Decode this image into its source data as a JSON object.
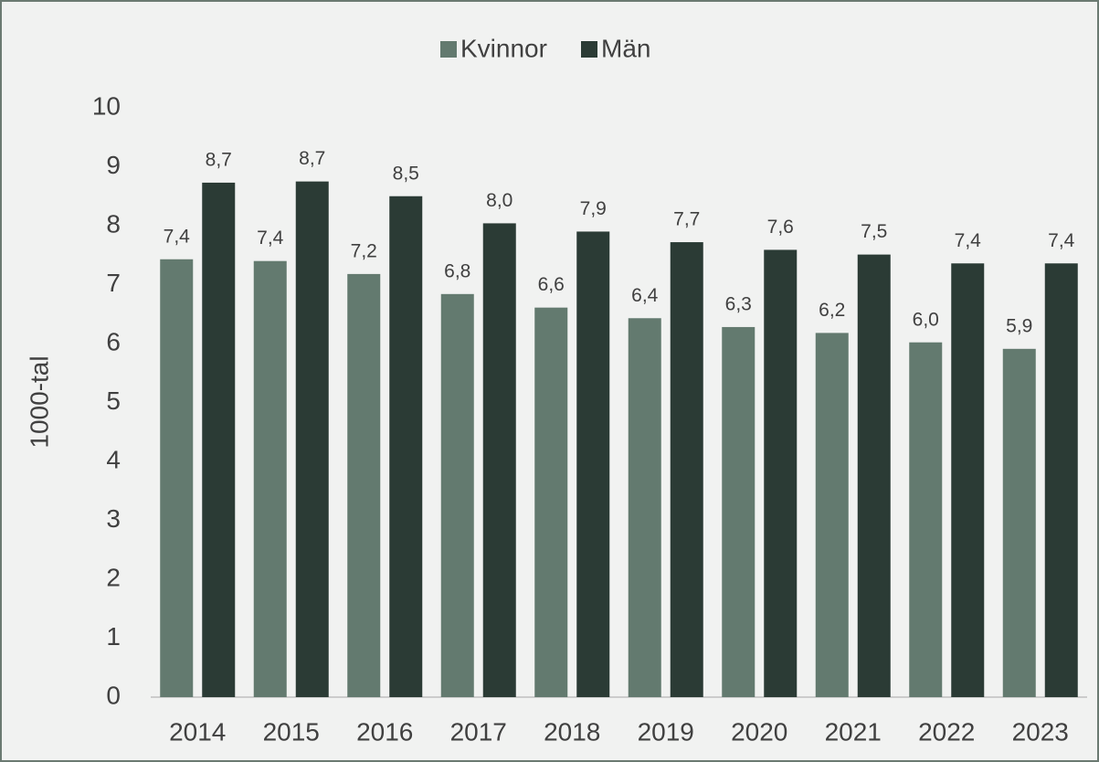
{
  "chart_data": {
    "type": "bar",
    "y_label": "1000-tal",
    "categories": [
      "2014",
      "2015",
      "2016",
      "2017",
      "2018",
      "2019",
      "2020",
      "2021",
      "2022",
      "2023"
    ],
    "series": [
      {
        "name": "Kvinnor",
        "color": "#637a6f",
        "values": [
          7.43,
          7.4,
          7.18,
          6.84,
          6.61,
          6.43,
          6.28,
          6.18,
          6.02,
          5.91
        ],
        "value_labels": [
          "7,4",
          "7,4",
          "7,2",
          "6,8",
          "6,6",
          "6,4",
          "6,3",
          "6,2",
          "6,0",
          "5,9"
        ]
      },
      {
        "name": "Män",
        "color": "#2b3b35",
        "values": [
          8.73,
          8.75,
          8.5,
          8.04,
          7.9,
          7.72,
          7.59,
          7.51,
          7.36,
          7.36
        ],
        "value_labels": [
          "8,7",
          "8,7",
          "8,5",
          "8,0",
          "7,9",
          "7,7",
          "7,6",
          "7,5",
          "7,4",
          "7,4"
        ]
      }
    ],
    "ylim": [
      0,
      10
    ],
    "yticks": [
      0,
      1,
      2,
      3,
      4,
      5,
      6,
      7,
      8,
      9,
      10
    ],
    "grid": false,
    "legend": "top"
  }
}
